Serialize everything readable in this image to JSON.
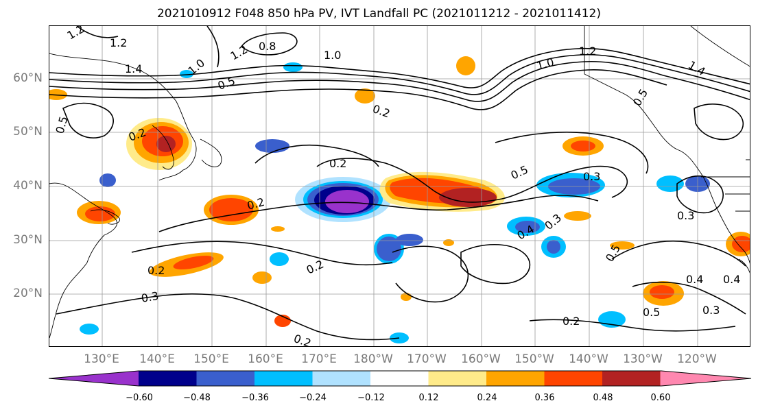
{
  "title": "2021010912 F048 850 hPa PV, IVT Landfall PC (2021011212 - 2021011412)",
  "lat_labels": [
    "60°N",
    "50°N",
    "40°N",
    "30°N",
    "20°N"
  ],
  "lon_labels": [
    "130°E",
    "140°E",
    "150°E",
    "160°E",
    "170°E",
    "180°W",
    "170°W",
    "160°W",
    "150°W",
    "140°W",
    "130°W",
    "120°W"
  ],
  "colorbar": {
    "ticks": [
      "−0.60",
      "−0.48",
      "−0.36",
      "−0.24",
      "−0.12",
      "0.12",
      "0.24",
      "0.36",
      "0.48",
      "0.60"
    ],
    "colors": [
      "#9932cc",
      "#00008b",
      "#3a5fcd",
      "#00bfff",
      "#b0e2ff",
      "#ffffff",
      "#ffeb8a",
      "#ffa500",
      "#ff4500",
      "#b22222",
      "#ff88b0"
    ]
  },
  "contour_labels": [
    "1.2",
    "1.4",
    "1.2",
    "0.8",
    "1.0",
    "1.2",
    "1.0",
    "0.5",
    "0.2",
    "0.5",
    "0.2",
    "0.2",
    "0.5",
    "0.3",
    "0.4",
    "0.3",
    "0.2",
    "0.5",
    "0.3",
    "0.2",
    "0.2",
    "0.5",
    "0.4",
    "0.4",
    "0.3",
    "0.2",
    "0.3",
    "0.5",
    "0.2",
    "1.4",
    "1.0",
    "1.2"
  ]
}
